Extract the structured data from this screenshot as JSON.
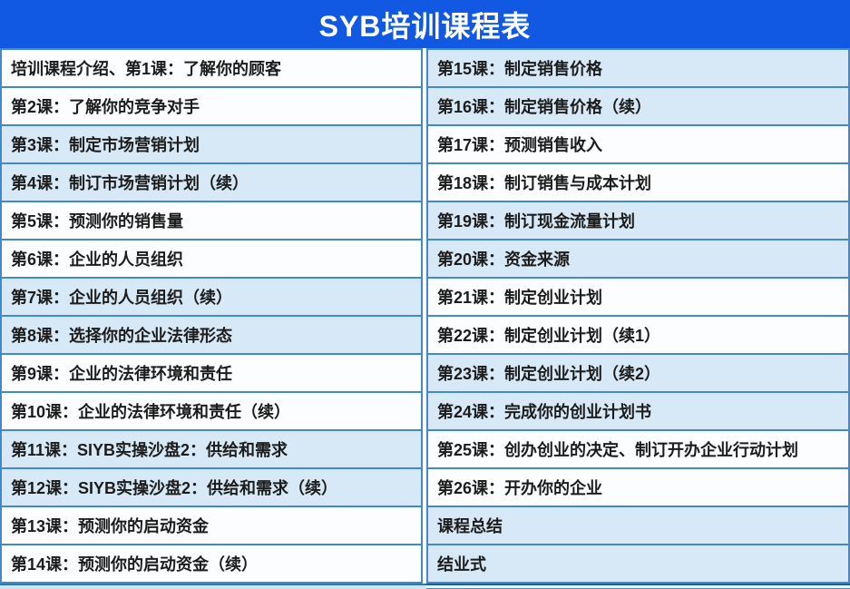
{
  "title": "SYB培训课程表",
  "colors": {
    "header_bg": "#1158e2",
    "row_blue": "#d7e8f7",
    "row_white": "#fcfdfe",
    "border": "#4288cf",
    "text": "#1c1c1c"
  },
  "left_column": {
    "rows": [
      "培训课程介绍、第1课：了解你的顾客",
      "第2课：了解你的竞争对手",
      "第3课：制定市场营销计划",
      "第4课：制订市场营销计划（续）",
      "第5课：预测你的销售量",
      "第6课：企业的人员组织",
      "第7课：企业的人员组织（续）",
      "第8课：选择你的企业法律形态",
      "第9课：企业的法律环境和责任",
      "第10课：企业的法律环境和责任（续）",
      "第11课：SIYB实操沙盘2：供给和需求",
      "第12课：SIYB实操沙盘2：供给和需求（续）",
      "第13课：预测你的启动资金",
      "第14课：预测你的启动资金（续）"
    ]
  },
  "right_column": {
    "rows": [
      "第15课：制定销售价格",
      "第16课：制定销售价格（续）",
      "第17课：预测销售收入",
      "第18课：制订销售与成本计划",
      "第19课：制订现金流量计划",
      "第20课：资金来源",
      "第21课：制定创业计划",
      "第22课：制定创业计划（续1）",
      "第23课：制定创业计划（续2）",
      "第24课：完成你的创业计划书",
      "第25课：创办创业的决定、制订开办企业行动计划",
      "第26课：开办你的企业",
      "课程总结",
      "结业式"
    ]
  }
}
